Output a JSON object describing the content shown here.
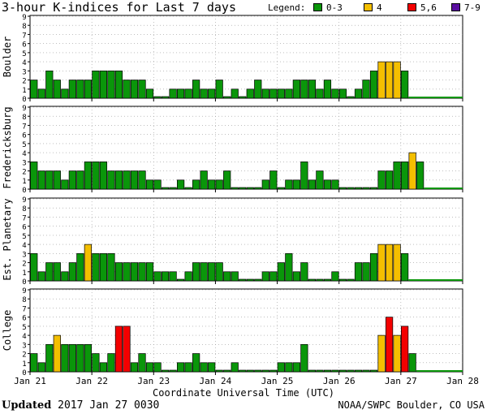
{
  "title": "3-hour K-indices for Last 7 days",
  "legend": {
    "label": "Legend:",
    "items": [
      {
        "label": "0-3",
        "color": "#0a960a"
      },
      {
        "label": "4",
        "color": "#f4bf00"
      },
      {
        "label": "5,6",
        "color": "#f40000"
      },
      {
        "label": "7-9",
        "color": "#5a0ea0"
      }
    ]
  },
  "footer": {
    "updated_label": "Updated",
    "updated_value": "2017 Jan 27 0030",
    "credit": "NOAA/SWPC Boulder, CO USA"
  },
  "chart_data": {
    "type": "bar",
    "xlabel": "Coordinate Universal Time (UTC)",
    "x_tick_labels": [
      "Jan 21",
      "Jan 22",
      "Jan 23",
      "Jan 24",
      "Jan 25",
      "Jan 26",
      "Jan 27",
      "Jan 28"
    ],
    "ylim": [
      0,
      9
    ],
    "y_ticks": [
      0,
      1,
      2,
      3,
      4,
      5,
      6,
      7,
      8,
      9
    ],
    "interval_hours": 3,
    "panels": [
      {
        "name": "Boulder",
        "values": [
          2,
          1,
          3,
          2,
          1,
          2,
          2,
          2,
          3,
          3,
          3,
          3,
          2,
          2,
          2,
          1,
          0,
          0,
          1,
          1,
          1,
          2,
          1,
          1,
          2,
          0,
          1,
          0,
          1,
          2,
          1,
          1,
          1,
          1,
          2,
          2,
          2,
          1,
          2,
          1,
          1,
          0,
          1,
          2,
          3,
          4,
          4,
          4,
          3
        ]
      },
      {
        "name": "Fredericksburg",
        "values": [
          3,
          2,
          2,
          2,
          1,
          2,
          2,
          3,
          3,
          3,
          2,
          2,
          2,
          2,
          2,
          1,
          1,
          0,
          0,
          1,
          0,
          1,
          2,
          1,
          1,
          2,
          0,
          0,
          0,
          0,
          1,
          2,
          0,
          1,
          1,
          3,
          1,
          2,
          1,
          1,
          0,
          0,
          0,
          0,
          0,
          2,
          2,
          3,
          3,
          4,
          3
        ]
      },
      {
        "name": "Est. Planetary",
        "values": [
          3,
          1,
          2,
          2,
          1,
          2,
          3,
          4,
          3,
          3,
          3,
          2,
          2,
          2,
          2,
          2,
          1,
          1,
          1,
          0,
          1,
          2,
          2,
          2,
          2,
          1,
          1,
          0,
          0,
          0,
          1,
          1,
          2,
          3,
          1,
          2,
          0,
          0,
          0,
          1,
          0,
          0,
          2,
          2,
          3,
          4,
          4,
          4,
          3
        ]
      },
      {
        "name": "College",
        "values": [
          2,
          1,
          3,
          4,
          3,
          3,
          3,
          3,
          2,
          1,
          2,
          5,
          5,
          1,
          2,
          1,
          1,
          0,
          0,
          1,
          1,
          2,
          1,
          1,
          0,
          0,
          1,
          0,
          0,
          0,
          0,
          0,
          1,
          1,
          1,
          3,
          0,
          0,
          0,
          0,
          0,
          0,
          0,
          0,
          0,
          4,
          6,
          4,
          5,
          2
        ]
      }
    ]
  }
}
